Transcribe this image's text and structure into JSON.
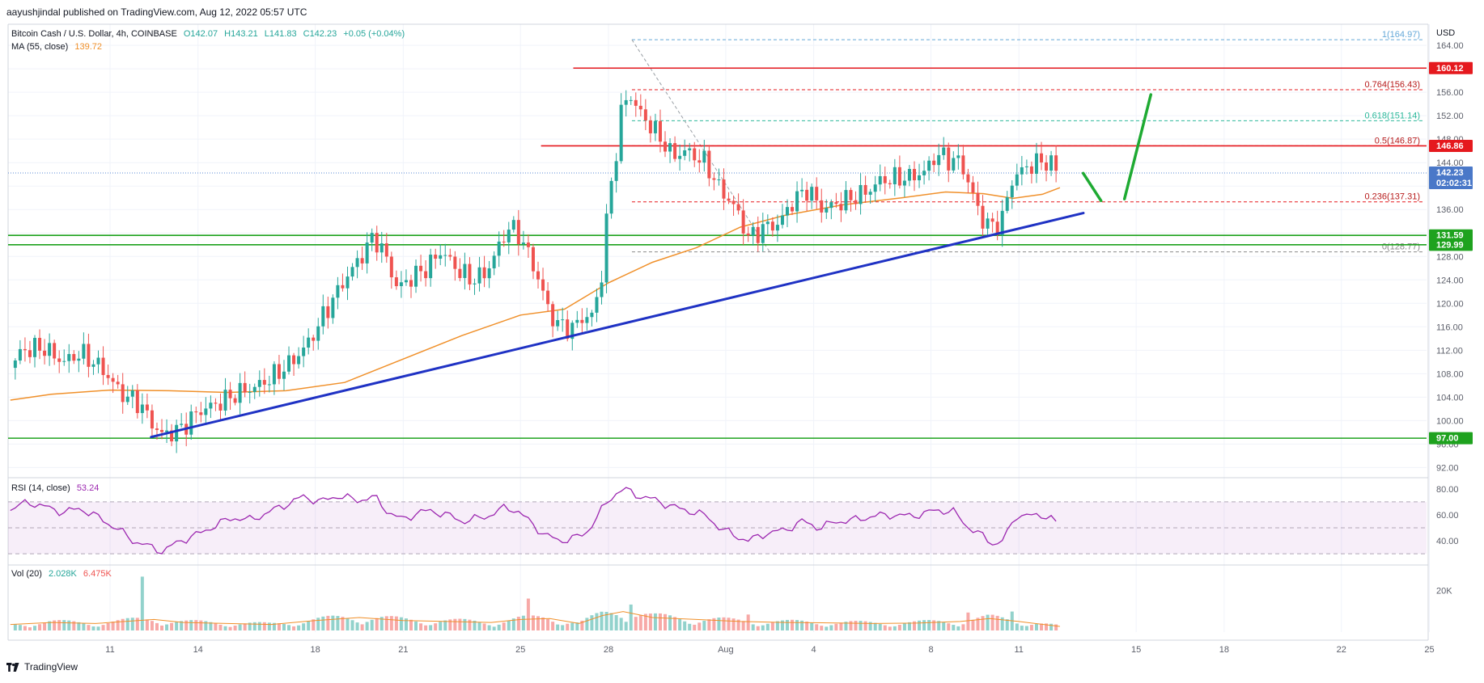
{
  "header": {
    "publisher": "aayushjindal published on TradingView.com, Aug 12, 2022 05:57 UTC",
    "symbol": "Bitcoin Cash / U.S. Dollar, 4h, COINBASE",
    "ohlc": {
      "open": "O142.07",
      "high": "H143.21",
      "low": "L141.83",
      "close": "C142.23",
      "change": "+0.05 (+0.04%)"
    },
    "ma_label": "MA (55, close)",
    "ma_value": "139.72",
    "rsi_label": "RSI (14, close)",
    "rsi_value": "53.24",
    "vol_label": "Vol (20)",
    "vol_value1": "2.028K",
    "vol_value2": "6.475K"
  },
  "footer": {
    "brand": "TradingView"
  },
  "colors": {
    "up": "#26a69a",
    "down": "#ef5350",
    "ma": "#f0902a",
    "trendline": "#1f32c4",
    "resistance": "#e5191e",
    "support": "#1ea21e",
    "rsi": "#9c27b0",
    "forecast": "#1eaa32"
  },
  "chart_data": {
    "type": "candlestick",
    "currency": "USD",
    "x_axis": {
      "labels": [
        "11",
        "14",
        "18",
        "21",
        "25",
        "28",
        "Aug",
        "4",
        "8",
        "11",
        "15",
        "18",
        "22",
        "25"
      ],
      "label_days": [
        -20,
        -17,
        -13,
        -10,
        -6,
        -3,
        1,
        4,
        8,
        11,
        15,
        18,
        22,
        25
      ]
    },
    "price_axis": {
      "ticks": [
        "92.00",
        "96.00",
        "100.00",
        "104.00",
        "108.00",
        "112.00",
        "116.00",
        "120.00",
        "124.00",
        "128.00",
        "132.00",
        "136.00",
        "140.00",
        "144.00",
        "148.00",
        "152.00",
        "156.00",
        "160.00",
        "164.00"
      ],
      "ylim": [
        90.4,
        167.6
      ]
    },
    "last_price": {
      "value": 142.23,
      "label": "142.23",
      "countdown": "02:02:31"
    },
    "horizontal_levels": [
      {
        "value": 160.12,
        "label": "160.12",
        "kind": "resistance"
      },
      {
        "value": 146.86,
        "label": "146.86",
        "kind": "resistance"
      },
      {
        "value": 131.59,
        "label": "131.59",
        "kind": "support"
      },
      {
        "value": 129.99,
        "label": "129.99",
        "kind": "support"
      },
      {
        "value": 97.0,
        "label": "97.00",
        "kind": "support"
      }
    ],
    "fibonacci": [
      {
        "level": "1",
        "value": 164.97,
        "label": "1(164.97)"
      },
      {
        "level": "0.764",
        "value": 156.43,
        "label": "0.764(156.43)"
      },
      {
        "level": "0.618",
        "value": 151.14,
        "label": "0.618(151.14)"
      },
      {
        "level": "0.5",
        "value": 146.87,
        "label": "0.5(146.87)"
      },
      {
        "level": "0.236",
        "value": 137.31,
        "label": "0.236(137.31)"
      },
      {
        "level": "0",
        "value": 128.77,
        "label": "0(128.77)"
      }
    ],
    "trendline": {
      "from": {
        "day": -18.6,
        "price": 97.2
      },
      "to": {
        "day": 13.2,
        "price": 135.4
      }
    },
    "forecast_path": [
      {
        "day": 13.8,
        "price": 137.5
      },
      {
        "day": 14.6,
        "price": 137.8
      },
      {
        "day": 15.5,
        "price": 155.6
      }
    ],
    "fib_swing": {
      "from": {
        "day": -2.2,
        "price": 164.97
      },
      "to": {
        "day": 2.5,
        "price": 128.77
      }
    },
    "price_anchors": [
      [
        -23.4,
        109
      ],
      [
        -23.0,
        112
      ],
      [
        -22.3,
        112.5
      ],
      [
        -21.6,
        110
      ],
      [
        -21.0,
        111.5
      ],
      [
        -20.3,
        109
      ],
      [
        -19.6,
        104.5
      ],
      [
        -19.0,
        103
      ],
      [
        -18.5,
        99
      ],
      [
        -18.2,
        97.5
      ],
      [
        -17.6,
        98.5
      ],
      [
        -17.0,
        101.5
      ],
      [
        -16.3,
        103
      ],
      [
        -15.6,
        104.8
      ],
      [
        -15.0,
        105.8
      ],
      [
        -14.3,
        108
      ],
      [
        -13.7,
        110.5
      ],
      [
        -13.2,
        113.5
      ],
      [
        -12.6,
        119
      ],
      [
        -12.0,
        124
      ],
      [
        -11.5,
        127.5
      ],
      [
        -11.0,
        131.5
      ],
      [
        -10.6,
        128
      ],
      [
        -10.2,
        122.5
      ],
      [
        -9.7,
        124.5
      ],
      [
        -9.2,
        126
      ],
      [
        -8.7,
        129
      ],
      [
        -8.2,
        126
      ],
      [
        -7.7,
        124
      ],
      [
        -7.2,
        125
      ],
      [
        -6.8,
        129
      ],
      [
        -6.4,
        133
      ],
      [
        -6.0,
        131.5
      ],
      [
        -5.7,
        128
      ],
      [
        -5.3,
        123
      ],
      [
        -5.0,
        118
      ],
      [
        -4.6,
        116
      ],
      [
        -4.2,
        115.8
      ],
      [
        -3.9,
        117.5
      ],
      [
        -3.5,
        118
      ],
      [
        -3.2,
        126
      ],
      [
        -3.0,
        138
      ],
      [
        -2.8,
        143
      ],
      [
        -2.6,
        152
      ],
      [
        -2.3,
        156
      ],
      [
        -2.0,
        153
      ],
      [
        -1.6,
        150.5
      ],
      [
        -1.2,
        148
      ],
      [
        -0.8,
        145
      ],
      [
        -0.4,
        146
      ],
      [
        0.0,
        145
      ],
      [
        0.3,
        144
      ],
      [
        0.8,
        139.5
      ],
      [
        1.3,
        136.5
      ],
      [
        1.8,
        131
      ],
      [
        2.3,
        133
      ],
      [
        2.8,
        133.5
      ],
      [
        3.3,
        137.5
      ],
      [
        3.8,
        139.5
      ],
      [
        4.3,
        136
      ],
      [
        4.8,
        137
      ],
      [
        5.3,
        138
      ],
      [
        5.8,
        139
      ],
      [
        6.3,
        141
      ],
      [
        6.8,
        141.3
      ],
      [
        7.3,
        141.5
      ],
      [
        7.8,
        142.5
      ],
      [
        8.2,
        145.5
      ],
      [
        8.6,
        144.5
      ],
      [
        9.0,
        144.2
      ],
      [
        9.4,
        139
      ],
      [
        9.7,
        134.5
      ],
      [
        10.1,
        133
      ],
      [
        10.4,
        134
      ],
      [
        10.8,
        141.5
      ],
      [
        11.2,
        143
      ],
      [
        11.6,
        144
      ],
      [
        12.0,
        144.2
      ],
      [
        12.2,
        143.2
      ],
      [
        12.4,
        142.23
      ]
    ],
    "ma_line": [
      [
        -23.4,
        103.5
      ],
      [
        -22,
        104.5
      ],
      [
        -20,
        105.2
      ],
      [
        -18,
        105.1
      ],
      [
        -16,
        104.8
      ],
      [
        -14,
        105.1
      ],
      [
        -12,
        106.5
      ],
      [
        -10,
        110.5
      ],
      [
        -8,
        114.5
      ],
      [
        -6,
        118
      ],
      [
        -4.5,
        119
      ],
      [
        -3,
        123.5
      ],
      [
        -1.5,
        127
      ],
      [
        0,
        129.5
      ],
      [
        1.5,
        133
      ],
      [
        3,
        135
      ],
      [
        5,
        136.8
      ],
      [
        7,
        138
      ],
      [
        8.5,
        139
      ],
      [
        9.8,
        138.7
      ],
      [
        10.8,
        137.9
      ],
      [
        11.8,
        138.6
      ],
      [
        12.4,
        139.72
      ]
    ],
    "rsi": {
      "ticks": [
        "40.00",
        "60.00",
        "80.00"
      ],
      "bands": [
        30,
        70
      ],
      "ylim": [
        22,
        88
      ],
      "current": 53.24,
      "line": [
        [
          -23.4,
          64
        ],
        [
          -22.8,
          70
        ],
        [
          -22.2,
          66
        ],
        [
          -21.6,
          62
        ],
        [
          -21.0,
          65
        ],
        [
          -20.4,
          58
        ],
        [
          -19.8,
          50
        ],
        [
          -19.2,
          40
        ],
        [
          -18.6,
          35
        ],
        [
          -18.2,
          32
        ],
        [
          -17.6,
          40
        ],
        [
          -17.0,
          45
        ],
        [
          -16.4,
          52
        ],
        [
          -15.8,
          58
        ],
        [
          -15.2,
          56
        ],
        [
          -14.6,
          62
        ],
        [
          -14.0,
          68
        ],
        [
          -13.4,
          74
        ],
        [
          -12.8,
          70
        ],
        [
          -12.2,
          75
        ],
        [
          -11.6,
          71
        ],
        [
          -11.0,
          74
        ],
        [
          -10.5,
          62
        ],
        [
          -10.0,
          56
        ],
        [
          -9.5,
          62
        ],
        [
          -9.0,
          63
        ],
        [
          -8.5,
          60
        ],
        [
          -8.0,
          55
        ],
        [
          -7.5,
          57
        ],
        [
          -7.0,
          60
        ],
        [
          -6.5,
          66
        ],
        [
          -6.1,
          63
        ],
        [
          -5.7,
          55
        ],
        [
          -5.2,
          45
        ],
        [
          -4.7,
          40
        ],
        [
          -4.2,
          42
        ],
        [
          -3.8,
          45
        ],
        [
          -3.4,
          58
        ],
        [
          -3.1,
          68
        ],
        [
          -2.8,
          76
        ],
        [
          -2.5,
          80
        ],
        [
          -2.0,
          75
        ],
        [
          -1.5,
          72
        ],
        [
          -1.0,
          68
        ],
        [
          -0.5,
          64
        ],
        [
          0.0,
          62
        ],
        [
          0.4,
          58
        ],
        [
          0.8,
          50
        ],
        [
          1.3,
          44
        ],
        [
          1.8,
          40
        ],
        [
          2.4,
          46
        ],
        [
          3.0,
          48
        ],
        [
          3.6,
          55
        ],
        [
          4.2,
          50
        ],
        [
          4.8,
          55
        ],
        [
          5.4,
          56
        ],
        [
          6.0,
          59
        ],
        [
          6.6,
          60
        ],
        [
          7.2,
          59
        ],
        [
          7.8,
          61
        ],
        [
          8.2,
          64
        ],
        [
          8.8,
          62
        ],
        [
          9.3,
          50
        ],
        [
          9.8,
          43
        ],
        [
          10.2,
          37
        ],
        [
          10.5,
          41
        ],
        [
          10.9,
          60
        ],
        [
          11.4,
          59
        ],
        [
          11.9,
          60
        ],
        [
          12.4,
          53.24
        ]
      ]
    },
    "volume": {
      "ticks": [
        "20K"
      ],
      "max": 30000,
      "anchors": [
        [
          -23.4,
          3000
        ],
        [
          -22.0,
          4000
        ],
        [
          -20.5,
          3500
        ],
        [
          -19.5,
          4500
        ],
        [
          -18.5,
          5500
        ],
        [
          -17.5,
          4000
        ],
        [
          -16.0,
          3500
        ],
        [
          -14.5,
          3000
        ],
        [
          -13.0,
          5000
        ],
        [
          -11.5,
          6500
        ],
        [
          -10.0,
          5000
        ],
        [
          -8.5,
          4500
        ],
        [
          -7.0,
          4000
        ],
        [
          -6.0,
          5500
        ],
        [
          -5.0,
          6000
        ],
        [
          -4.0,
          3500
        ],
        [
          -3.2,
          7500
        ],
        [
          -2.5,
          9500
        ],
        [
          -1.5,
          6500
        ],
        [
          0.0,
          5500
        ],
        [
          1.5,
          4500
        ],
        [
          3.0,
          4000
        ],
        [
          4.5,
          3800
        ],
        [
          6.0,
          3500
        ],
        [
          7.5,
          3700
        ],
        [
          9.0,
          4500
        ],
        [
          10.0,
          6000
        ],
        [
          11.0,
          4500
        ],
        [
          12.4,
          2028
        ]
      ],
      "spikes": [
        [
          -18.85,
          27000
        ],
        [
          -5.7,
          16000
        ],
        [
          -2.2,
          13000
        ],
        [
          1.8,
          8000
        ],
        [
          9.3,
          9000
        ],
        [
          10.8,
          9500
        ]
      ]
    }
  }
}
